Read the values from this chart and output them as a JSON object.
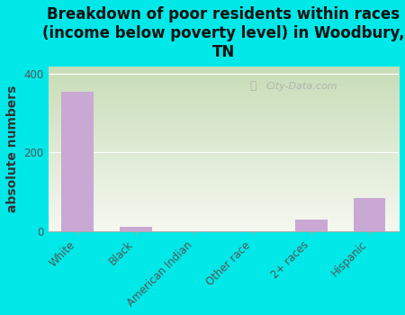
{
  "title": "Breakdown of poor residents within races\n(income below poverty level) in Woodbury,\nTN",
  "categories": [
    "White",
    "Black",
    "American Indian",
    "Other race",
    "2+ races",
    "Hispanic"
  ],
  "values": [
    355,
    10,
    0,
    0,
    30,
    85
  ],
  "bar_color": "#c9a8d4",
  "ylabel": "absolute numbers",
  "ylim": [
    0,
    420
  ],
  "yticks": [
    0,
    200,
    400
  ],
  "background_color": "#00e8e8",
  "plot_bg_top": "#c8ddb8",
  "plot_bg_bottom": "#f5f8f0",
  "watermark": "City-Data.com",
  "title_fontsize": 12,
  "ylabel_fontsize": 10,
  "tick_fontsize": 8.5
}
